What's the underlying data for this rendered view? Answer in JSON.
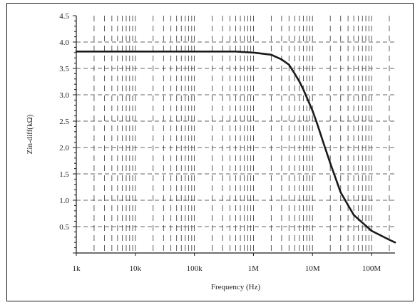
{
  "chart_data": {
    "type": "line",
    "title": "",
    "xlabel": "Frequency (Hz)",
    "ylabel": "Zin-diff(kΩ)",
    "x_scale": "log",
    "xlim": [
      1000,
      250000000
    ],
    "ylim": [
      0,
      4.5
    ],
    "x_ticks": [
      {
        "value": 1000,
        "label": "1k"
      },
      {
        "value": 10000,
        "label": "10k"
      },
      {
        "value": 100000,
        "label": "100k"
      },
      {
        "value": 1000000,
        "label": "1M"
      },
      {
        "value": 10000000,
        "label": "10M"
      },
      {
        "value": 100000000,
        "label": "100M"
      }
    ],
    "y_ticks": [
      {
        "value": 0.5,
        "label": "0.5"
      },
      {
        "value": 1.0,
        "label": "1.0"
      },
      {
        "value": 1.5,
        "label": "1.5"
      },
      {
        "value": 2.0,
        "label": "2.0"
      },
      {
        "value": 2.5,
        "label": "2.5"
      },
      {
        "value": 3.0,
        "label": "3.0"
      },
      {
        "value": 3.5,
        "label": "3.5"
      },
      {
        "value": 4.0,
        "label": "4.0"
      },
      {
        "value": 4.5,
        "label": "4.5"
      }
    ],
    "grid": true,
    "line_color": "#1a1a1a",
    "series": [
      {
        "x": [
          1000,
          10000,
          100000,
          500000,
          1000000,
          2000000,
          3000000,
          4000000,
          5000000,
          6000000,
          7000000,
          8000000,
          10000000,
          12000000,
          15000000,
          20000000,
          30000000,
          50000000,
          100000000,
          200000000,
          250000000
        ],
        "y": [
          3.82,
          3.82,
          3.82,
          3.82,
          3.8,
          3.76,
          3.67,
          3.57,
          3.4,
          3.25,
          3.1,
          2.95,
          2.7,
          2.45,
          2.12,
          1.7,
          1.15,
          0.72,
          0.42,
          0.25,
          0.2
        ]
      }
    ]
  }
}
